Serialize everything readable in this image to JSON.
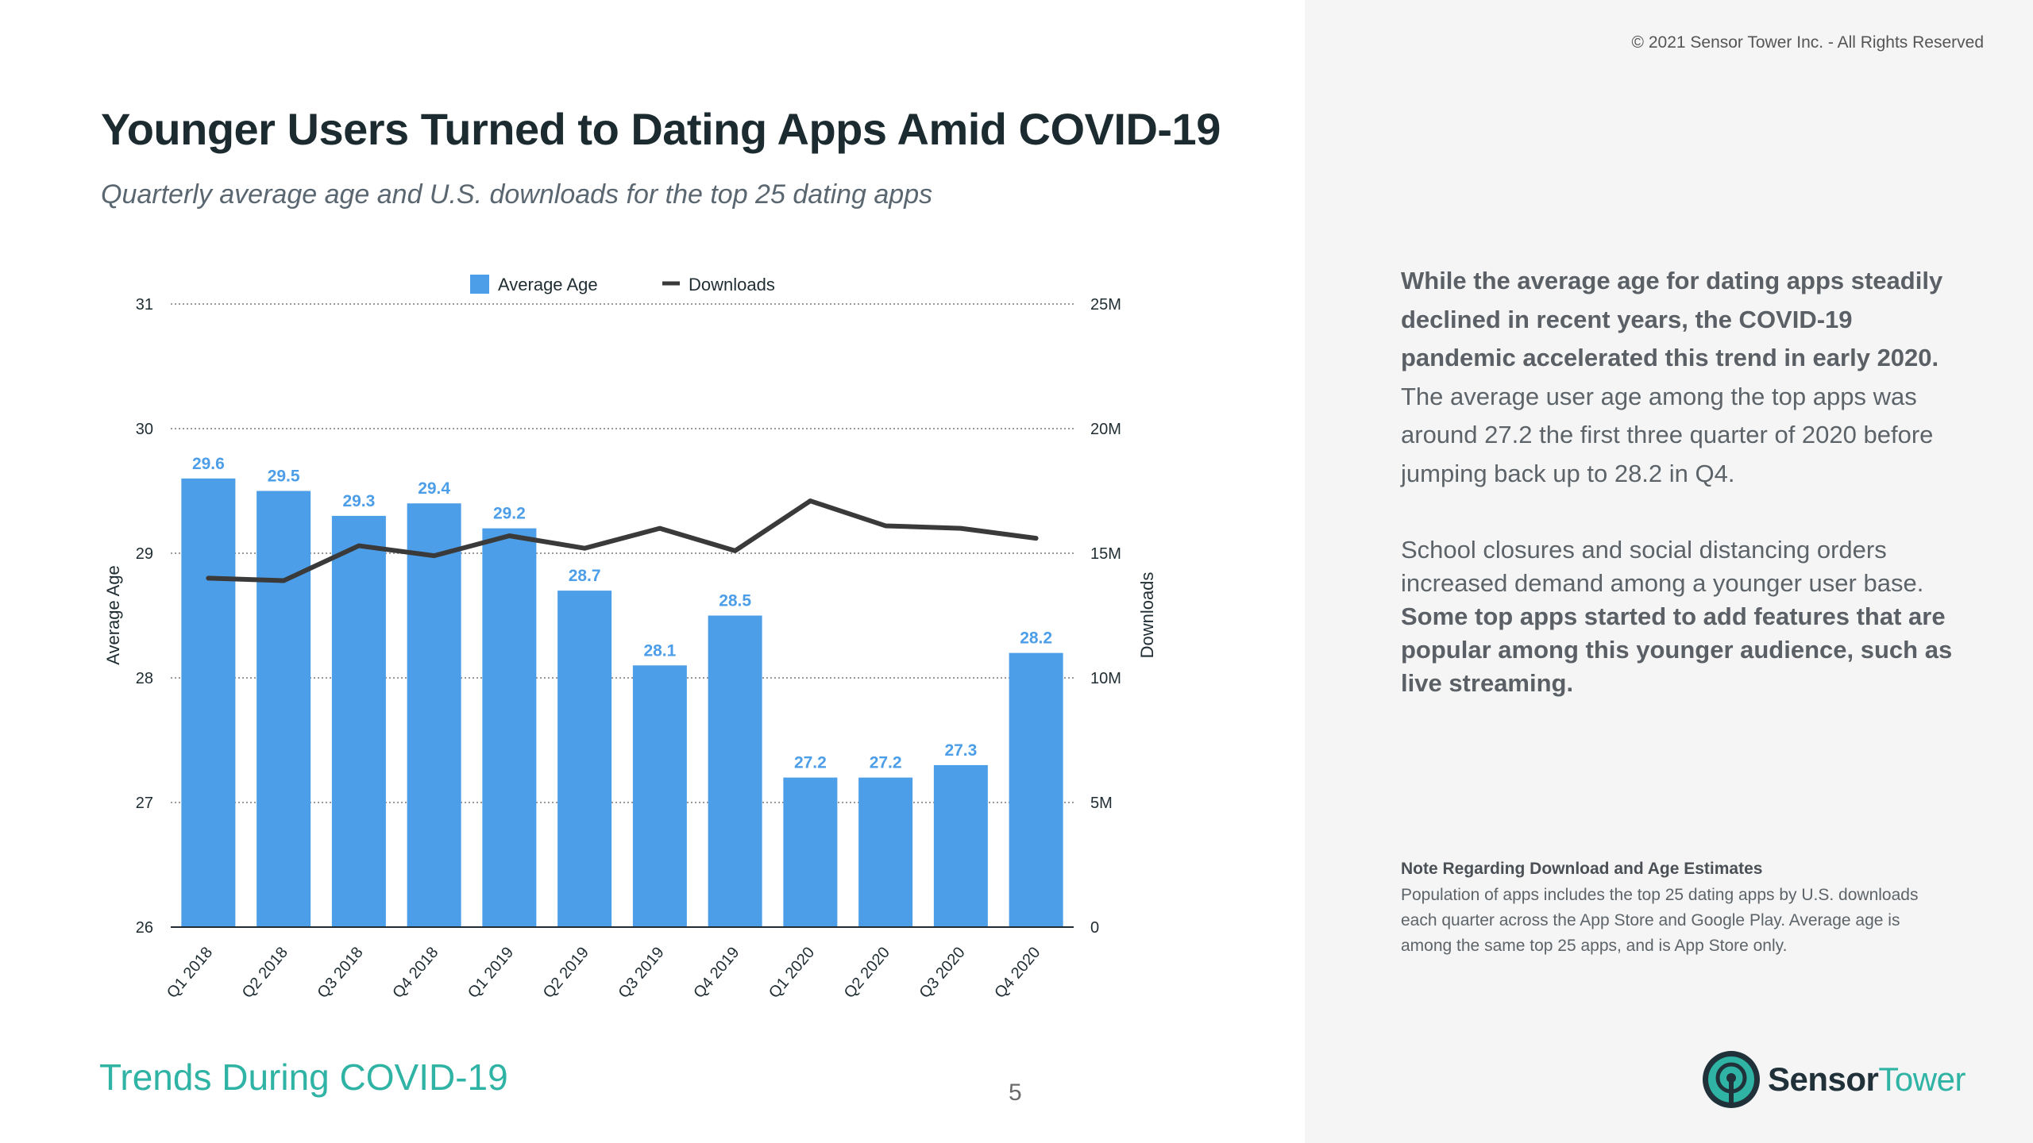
{
  "copyright": "© 2021 Sensor Tower Inc. - All Rights Reserved",
  "header": {
    "title": "Younger Users Turned to Dating Apps Amid COVID-19",
    "subtitle": "Quarterly average age and U.S. downloads for the top 25 dating apps"
  },
  "colors": {
    "bar": "#4d9ee8",
    "bar_label": "#4d9ee8",
    "line": "#3a3a3a",
    "accent": "#2fb3a4",
    "panel": "#f5f5f5"
  },
  "chart_data": {
    "type": "bar",
    "categories": [
      "Q1 2018",
      "Q2 2018",
      "Q3 2018",
      "Q4 2018",
      "Q1 2019",
      "Q2 2019",
      "Q3 2019",
      "Q4 2019",
      "Q1 2020",
      "Q2 2020",
      "Q3 2020",
      "Q4 2020"
    ],
    "series": [
      {
        "name": "Average Age",
        "type": "bar",
        "axis": "left",
        "values": [
          29.6,
          29.5,
          29.3,
          29.4,
          29.2,
          28.7,
          28.1,
          28.5,
          27.2,
          27.2,
          27.3,
          28.2
        ],
        "labels": [
          "29.6",
          "29.5",
          "29.3",
          "29.4",
          "29.2",
          "28.7",
          "28.1",
          "28.5",
          "27.2",
          "27.2",
          "27.3",
          "28.2"
        ]
      },
      {
        "name": "Downloads",
        "type": "line",
        "axis": "right",
        "values": [
          14.0,
          13.9,
          15.3,
          14.9,
          15.7,
          15.2,
          16.0,
          15.1,
          17.1,
          16.1,
          16.0,
          15.6
        ]
      }
    ],
    "ylabel": "Average Age",
    "y2label": "Downloads",
    "ylim": [
      26,
      31
    ],
    "y2lim": [
      0,
      25
    ],
    "yticks": [
      "26",
      "27",
      "28",
      "29",
      "30",
      "31"
    ],
    "y2ticks": [
      "0",
      "5M",
      "10M",
      "15M",
      "20M",
      "25M"
    ],
    "grid": true,
    "legend": "top-center"
  },
  "sidebar": {
    "para1_bold": "While the average age for dating apps steadily declined in recent years, the COVID-19 pandemic accelerated this trend in early 2020.",
    "para1_rest": " The average user age among the top apps was around 27.2 the first three quarter of 2020 before jumping back up to 28.2 in Q4.",
    "para2_rest": "School closures and social distancing orders increased demand among a younger user base. ",
    "para2_bold": "Some top apps started to add features that are popular among this younger audience, such as live streaming.",
    "note_title": "Note Regarding Download and Age Estimates",
    "note_body": "Population of apps includes the top 25 dating apps by U.S. downloads each quarter across the App Store and Google Play. Average age is among the same top 25 apps, and is App Store only."
  },
  "footer": {
    "section": "Trends During COVID-19",
    "page": "5",
    "logo_a": "Sensor",
    "logo_b": "Tower"
  }
}
